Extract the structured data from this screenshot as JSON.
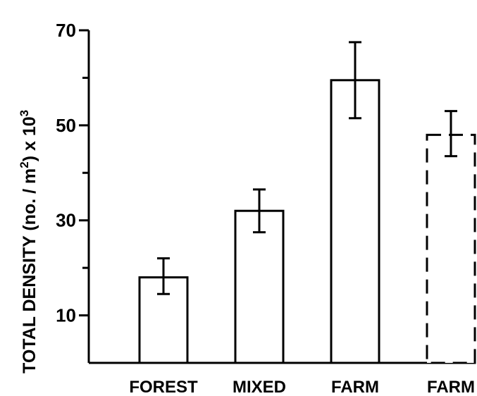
{
  "chart_data": {
    "type": "bar",
    "title": "",
    "xlabel": "",
    "ylabel": {
      "prefix": "TOTAL  DENSITY (no. / m",
      "superscript": "2",
      "middle": ") x 10",
      "power": "3"
    },
    "categories": [
      "FOREST",
      "MIXED",
      "FARM",
      "FARM"
    ],
    "bar_styles": [
      "solid",
      "solid",
      "solid",
      "dashed"
    ],
    "values": [
      18,
      32,
      59.5,
      48
    ],
    "error_bars": [
      [
        14.5,
        22
      ],
      [
        27.5,
        36.5
      ],
      [
        51.5,
        67.5
      ],
      [
        43.5,
        53
      ]
    ],
    "yticks": [
      10,
      30,
      50,
      70
    ],
    "yticks_minor": [
      20,
      40,
      60
    ],
    "ylim": [
      0,
      70
    ],
    "grid": false,
    "legend": "none",
    "colors": {
      "bar_fill": "#ffffff",
      "stroke": "#000000"
    }
  }
}
